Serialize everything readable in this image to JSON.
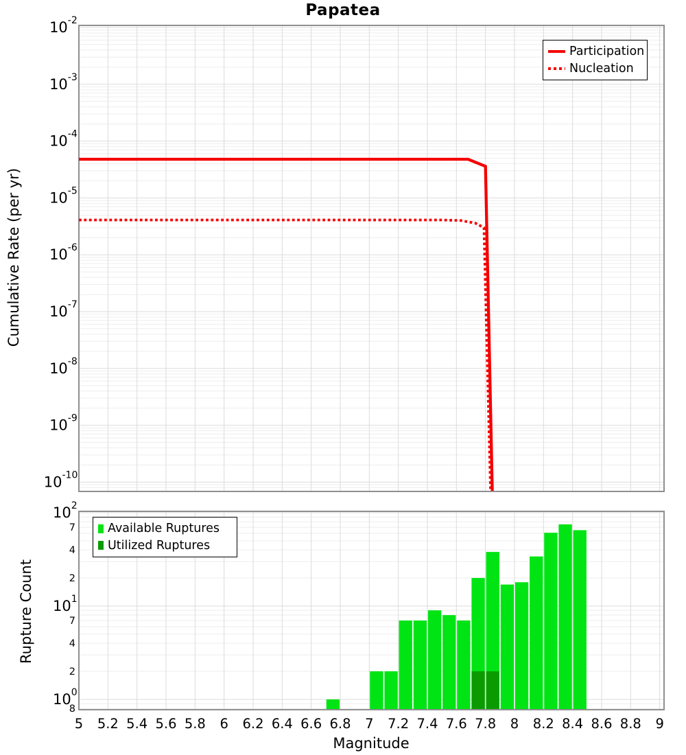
{
  "title": "Papatea",
  "colors": {
    "line_red": "#F50000",
    "available_green": "#00E414",
    "utilized_green": "#0B9B00",
    "grid_minor": "#EDEDED",
    "grid_major": "#DBDBDB",
    "frame": "#8F8F8F",
    "text": "#000000",
    "background": "#FFFFFF"
  },
  "top_legend": {
    "entries": [
      {
        "label": "Participation",
        "style": "solid"
      },
      {
        "label": "Nucleation",
        "style": "dotted"
      }
    ]
  },
  "bottom_legend": {
    "entries": [
      {
        "label": "Available Ruptures",
        "color_key": "available_green"
      },
      {
        "label": "Utilized Ruptures",
        "color_key": "utilized_green"
      }
    ]
  },
  "chart_data": [
    {
      "panel": "top",
      "type": "line",
      "title": "Papatea",
      "ylabel": "Cumulative Rate (per yr)",
      "xlabel": "",
      "x_axis": "log-linear magnitude, ticks every 0.2",
      "xlim": [
        5,
        9.03
      ],
      "ylim": [
        1e-10,
        0.01
      ],
      "yscale": "log",
      "grid": true,
      "legend_position": "top-right",
      "y_tick_exponents": [
        -2,
        -3,
        -4,
        -5,
        -6,
        -7,
        -8,
        -9,
        -10
      ],
      "series": [
        {
          "name": "Participation",
          "style": "solid",
          "color_key": "line_red",
          "points": [
            [
              5.0,
              4.8e-05
            ],
            [
              7.68,
              4.8e-05
            ],
            [
              7.8,
              3.6e-05
            ],
            [
              7.847,
              7e-11
            ]
          ]
        },
        {
          "name": "Nucleation",
          "style": "dotted",
          "color_key": "line_red",
          "points": [
            [
              5.0,
              4.1e-06
            ],
            [
              7.5,
              4.1e-06
            ],
            [
              7.63,
              4e-06
            ],
            [
              7.73,
              3.6e-06
            ],
            [
              7.79,
              3e-06
            ],
            [
              7.835,
              7e-11
            ]
          ]
        }
      ]
    },
    {
      "panel": "bottom",
      "type": "bar",
      "ylabel": "Rupture Count",
      "xlabel": "Magnitude",
      "xlim": [
        5,
        9.03
      ],
      "ylim": [
        0.8,
        100
      ],
      "yscale": "log",
      "grid": true,
      "legend_position": "top-left",
      "bin_width": 0.1,
      "y_tick_exponents": [
        0,
        1,
        2
      ],
      "y_minor_tick_labels": [
        {
          "value": 70,
          "label": "7"
        },
        {
          "value": 40,
          "label": "4"
        },
        {
          "value": 20,
          "label": "2"
        },
        {
          "value": 7,
          "label": "7"
        },
        {
          "value": 4,
          "label": "4"
        },
        {
          "value": 2,
          "label": "2"
        },
        {
          "value": 0.8,
          "label": "8"
        }
      ],
      "x_tick_labels": [
        "5",
        "5.2",
        "5.4",
        "5.6",
        "5.8",
        "6",
        "6.2",
        "6.4",
        "6.6",
        "6.8",
        "7",
        "7.2",
        "7.4",
        "7.6",
        "7.8",
        "8",
        "8.2",
        "8.4",
        "8.6",
        "8.8",
        "9"
      ],
      "series": [
        {
          "name": "Available Ruptures",
          "color_key": "available_green",
          "bins": [
            {
              "m": 6.7,
              "count": 1
            },
            {
              "m": 7.0,
              "count": 2
            },
            {
              "m": 7.1,
              "count": 2
            },
            {
              "m": 7.2,
              "count": 7
            },
            {
              "m": 7.3,
              "count": 7
            },
            {
              "m": 7.4,
              "count": 9
            },
            {
              "m": 7.5,
              "count": 8
            },
            {
              "m": 7.6,
              "count": 7
            },
            {
              "m": 7.7,
              "count": 20
            },
            {
              "m": 7.8,
              "count": 38
            },
            {
              "m": 7.9,
              "count": 17
            },
            {
              "m": 8.0,
              "count": 18
            },
            {
              "m": 8.1,
              "count": 34
            },
            {
              "m": 8.2,
              "count": 61
            },
            {
              "m": 8.3,
              "count": 75
            },
            {
              "m": 8.4,
              "count": 65
            }
          ]
        },
        {
          "name": "Utilized Ruptures",
          "color_key": "utilized_green",
          "bins": [
            {
              "m": 7.7,
              "count": 2
            },
            {
              "m": 7.8,
              "count": 2
            }
          ]
        }
      ]
    }
  ]
}
